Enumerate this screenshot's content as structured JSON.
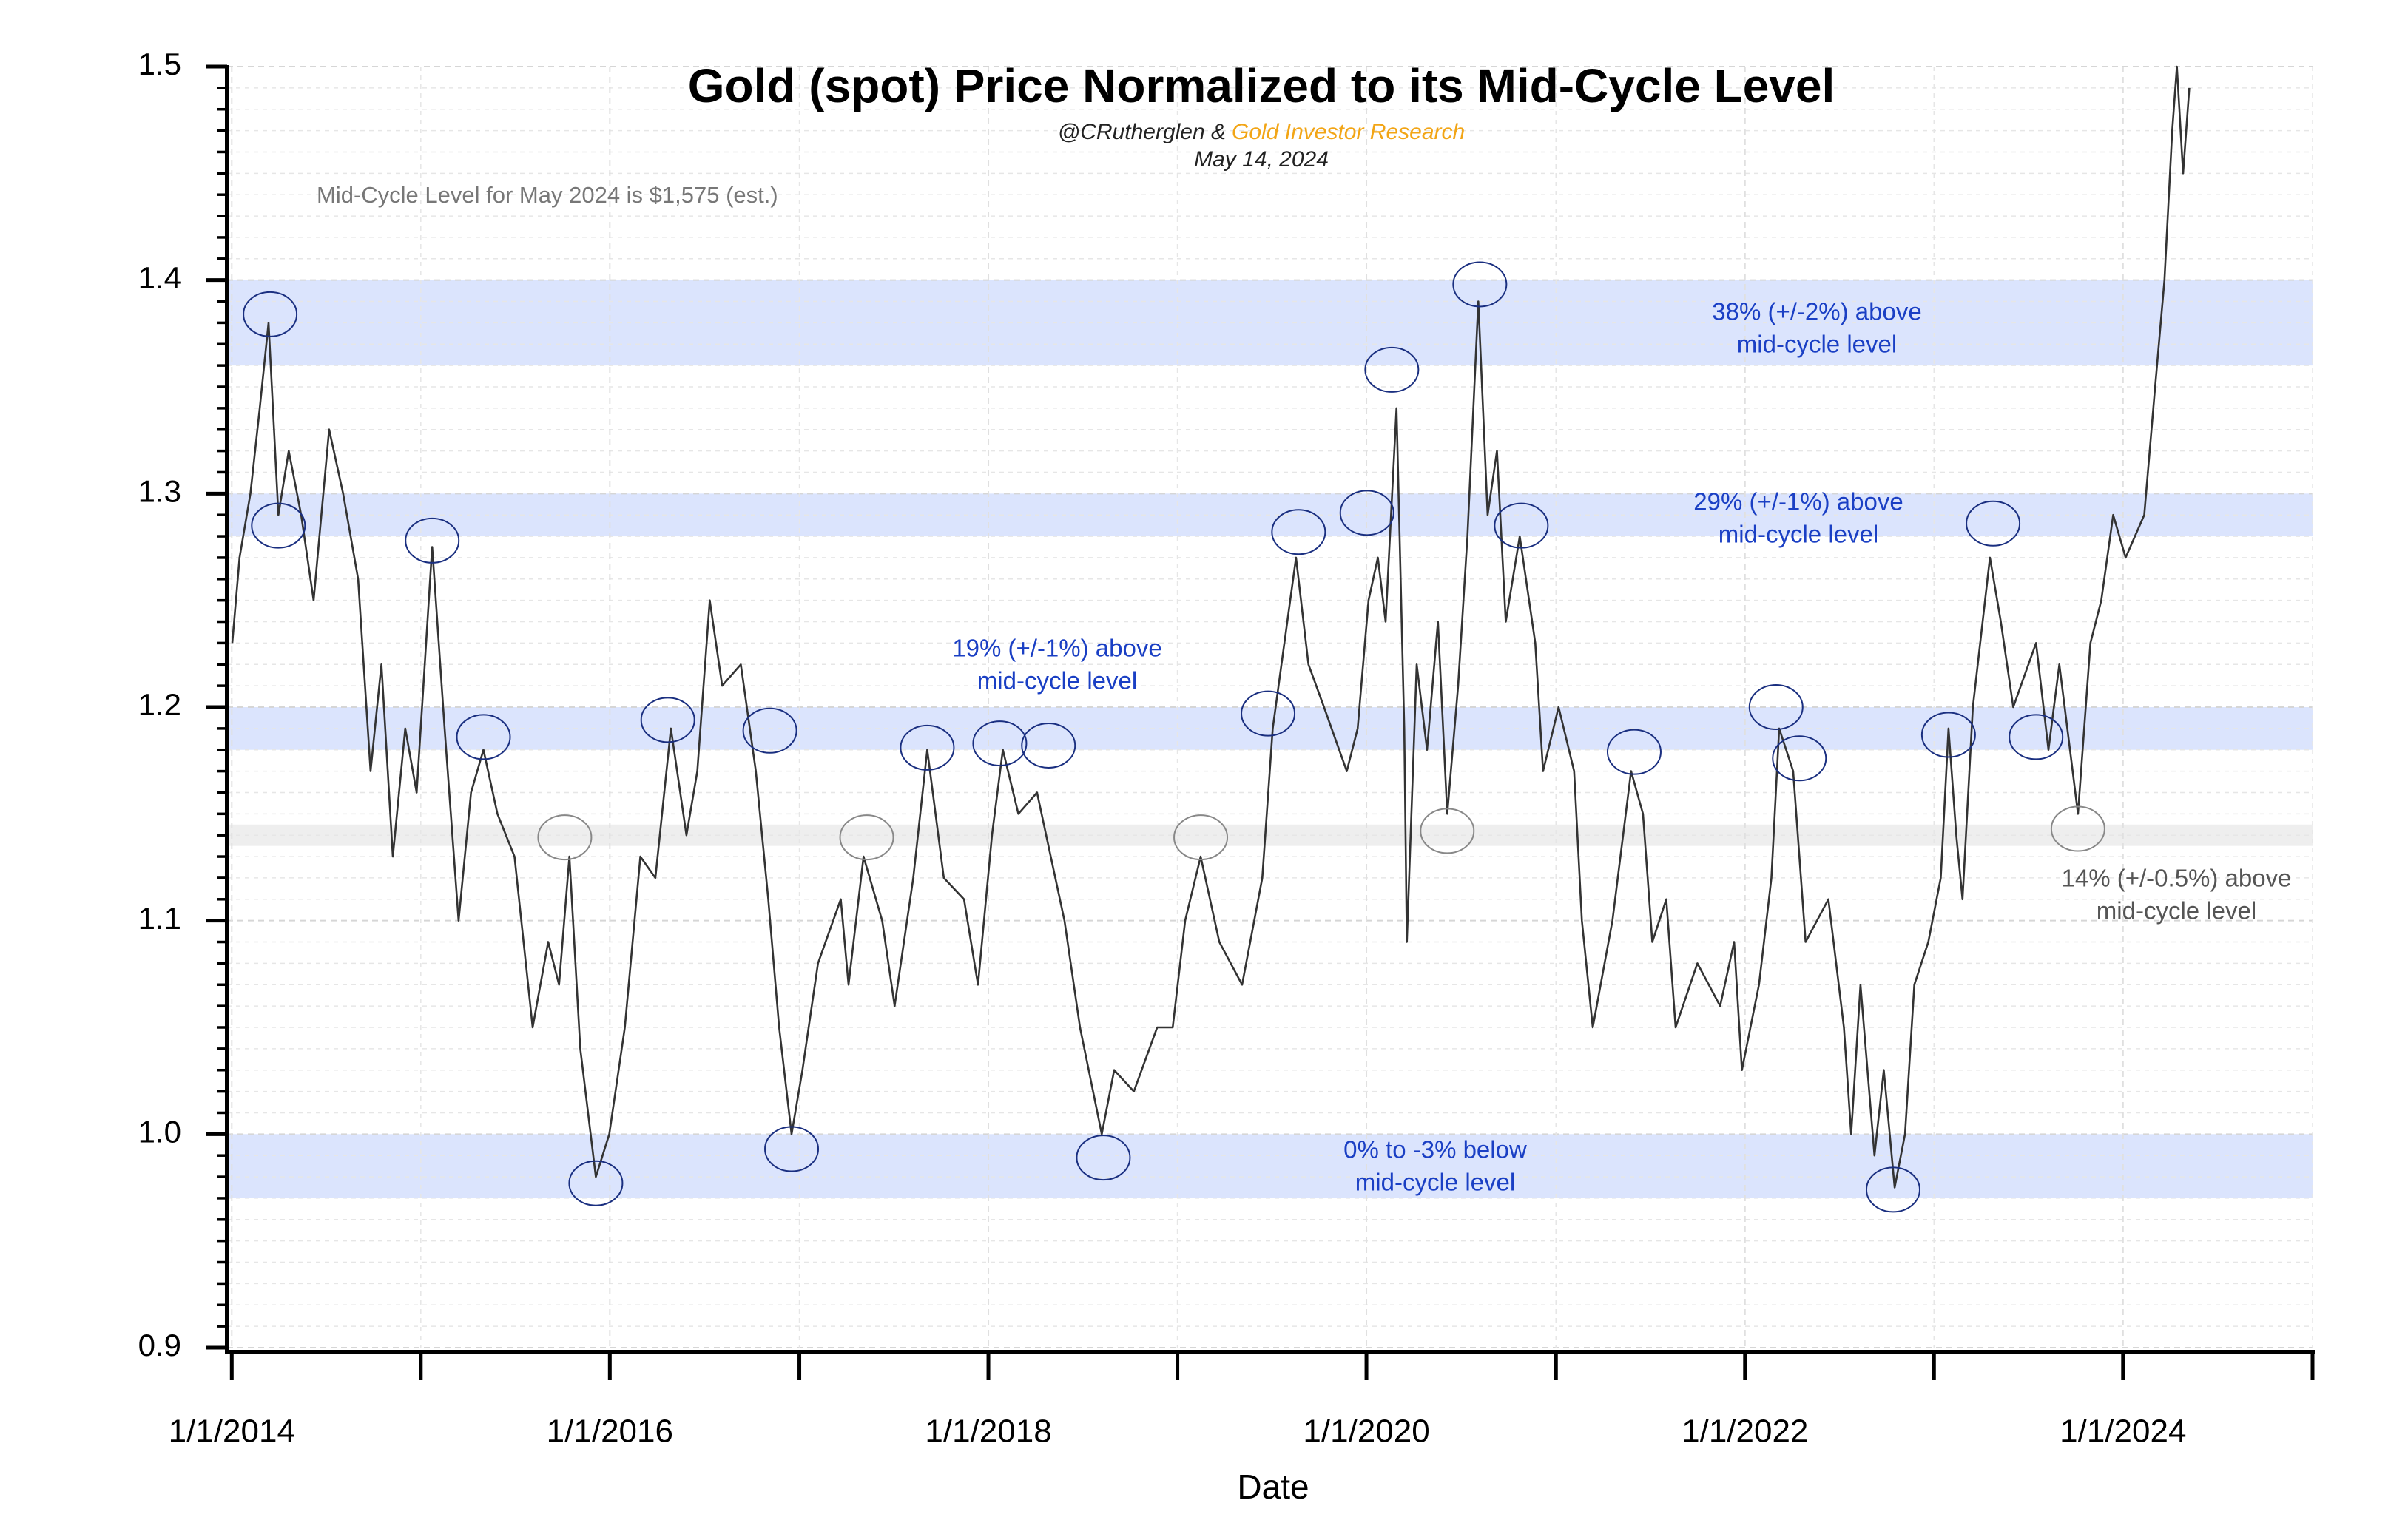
{
  "chart_data": {
    "type": "line",
    "title": "Gold (spot) Price Normalized to its Mid-Cycle Level",
    "subtitle_author": "@CRutherglen &",
    "subtitle_source": "Gold Investor Research",
    "subtitle_date": "May 14, 2024",
    "note": "Mid-Cycle Level for May 2024 is $1,575 (est.)",
    "xlabel": "Date",
    "xlim": [
      "2013-12-23",
      "2025-01-01"
    ],
    "xticks": [
      {
        "value": "2014-01-01",
        "label": "1/1/2014"
      },
      {
        "value": "2016-01-01",
        "label": "1/1/2016"
      },
      {
        "value": "2018-01-01",
        "label": "1/1/2018"
      },
      {
        "value": "2020-01-01",
        "label": "1/1/2020"
      },
      {
        "value": "2022-01-01",
        "label": "1/1/2022"
      },
      {
        "value": "2024-01-01",
        "label": "1/1/2024"
      }
    ],
    "xminor_ticks": [
      "2015-01-01",
      "2017-01-01",
      "2019-01-01",
      "2021-01-01",
      "2023-01-01",
      "2025-01-01"
    ],
    "ylim": [
      0.9,
      1.5
    ],
    "yticks": [
      0.9,
      {
        "value": 1,
        "label": "1.0"
      },
      1.1,
      1.2,
      1.3,
      1.4,
      1.5
    ],
    "yminor_ticks": [
      0.91,
      0.92,
      0.93,
      0.94,
      0.95,
      0.96,
      0.97,
      0.98,
      0.99,
      1.01,
      1.02,
      1.03,
      1.04,
      1.05,
      1.06,
      1.07,
      1.08,
      1.09,
      1.11,
      1.12,
      1.13,
      1.14,
      1.15,
      1.16,
      1.17,
      1.18,
      1.19,
      1.21,
      1.22,
      1.23,
      1.24,
      1.25,
      1.26,
      1.27,
      1.28,
      1.29,
      1.31,
      1.32,
      1.33,
      1.34,
      1.35,
      1.36,
      1.37,
      1.38,
      1.39,
      1.41,
      1.42,
      1.43,
      1.44,
      1.45,
      1.46,
      1.47,
      1.48,
      1.49
    ],
    "grid": true,
    "series": [
      {
        "name": "Gold (spot) normalized",
        "color": "#333333",
        "x": [
          "2014-01-02",
          "2014-01-16",
          "2014-02-06",
          "2014-02-24",
          "2014-03-13",
          "2014-04-01",
          "2014-04-21",
          "2014-05-15",
          "2014-06-08",
          "2014-07-08",
          "2014-08-04",
          "2014-09-02",
          "2014-09-26",
          "2014-10-17",
          "2014-11-08",
          "2014-12-02",
          "2014-12-24",
          "2015-01-23",
          "2015-02-16",
          "2015-03-15",
          "2015-04-08",
          "2015-05-02",
          "2015-05-29",
          "2015-07-01",
          "2015-08-05",
          "2015-09-04",
          "2015-09-25",
          "2015-10-15",
          "2015-11-05",
          "2015-12-05",
          "2015-12-31",
          "2016-01-30",
          "2016-02-29",
          "2016-03-29",
          "2016-04-28",
          "2016-05-28",
          "2016-06-18",
          "2016-07-12",
          "2016-08-05",
          "2016-09-10",
          "2016-10-09",
          "2016-11-02",
          "2016-11-23",
          "2016-12-17",
          "2017-01-07",
          "2017-02-06",
          "2017-03-22",
          "2017-04-06",
          "2017-05-05",
          "2017-06-10",
          "2017-07-04",
          "2017-08-09",
          "2017-09-05",
          "2017-10-07",
          "2017-11-15",
          "2017-12-12",
          "2018-01-08",
          "2018-01-29",
          "2018-02-28",
          "2018-04-05",
          "2018-05-28",
          "2018-06-27",
          "2018-08-08",
          "2018-09-01",
          "2018-10-09",
          "2018-11-23",
          "2018-12-23",
          "2019-01-16",
          "2019-02-15",
          "2019-03-23",
          "2019-05-06",
          "2019-06-14",
          "2019-07-04",
          "2019-08-18",
          "2019-09-11",
          "2019-10-11",
          "2019-11-24",
          "2019-12-15",
          "2020-01-05",
          "2020-01-23",
          "2020-02-07",
          "2020-02-28",
          "2020-03-14",
          "2020-03-19",
          "2020-04-07",
          "2020-04-27",
          "2020-05-18",
          "2020-06-05",
          "2020-06-26",
          "2020-07-14",
          "2020-08-04",
          "2020-08-22",
          "2020-09-09",
          "2020-09-26",
          "2020-10-23",
          "2020-11-22",
          "2020-12-07",
          "2021-01-06",
          "2021-02-05",
          "2021-02-20",
          "2021-03-13",
          "2021-04-20",
          "2021-05-26",
          "2021-06-18",
          "2021-07-06",
          "2021-08-02",
          "2021-08-20",
          "2021-10-01",
          "2021-11-14",
          "2021-12-11",
          "2021-12-26",
          "2022-01-28",
          "2022-02-21",
          "2022-03-08",
          "2022-04-04",
          "2022-04-28",
          "2022-06-11",
          "2022-07-11",
          "2022-07-25",
          "2022-08-12",
          "2022-09-08",
          "2022-09-26",
          "2022-10-17",
          "2022-11-06",
          "2022-11-24",
          "2022-12-21",
          "2023-01-14",
          "2023-01-29",
          "2023-02-13",
          "2023-02-25",
          "2023-03-17",
          "2023-04-19",
          "2023-05-10",
          "2023-06-03",
          "2023-07-17",
          "2023-08-10",
          "2023-08-31",
          "2023-10-06",
          "2023-10-30",
          "2023-11-20",
          "2023-12-13",
          "2024-01-06",
          "2024-02-11",
          "2024-03-03",
          "2024-03-21",
          "2024-04-05",
          "2024-04-14",
          "2024-04-26",
          "2024-05-08"
        ],
        "values": [
          1.23,
          1.27,
          1.3,
          1.34,
          1.38,
          1.29,
          1.32,
          1.29,
          1.25,
          1.33,
          1.3,
          1.26,
          1.17,
          1.22,
          1.13,
          1.19,
          1.16,
          1.275,
          1.19,
          1.1,
          1.16,
          1.18,
          1.15,
          1.13,
          1.05,
          1.09,
          1.07,
          1.13,
          1.04,
          0.98,
          1.0,
          1.05,
          1.13,
          1.12,
          1.19,
          1.14,
          1.17,
          1.25,
          1.21,
          1.22,
          1.17,
          1.11,
          1.05,
          1.0,
          1.03,
          1.08,
          1.11,
          1.07,
          1.13,
          1.1,
          1.06,
          1.12,
          1.18,
          1.12,
          1.11,
          1.07,
          1.14,
          1.18,
          1.15,
          1.16,
          1.1,
          1.05,
          1.0,
          1.03,
          1.02,
          1.05,
          1.05,
          1.1,
          1.13,
          1.09,
          1.07,
          1.12,
          1.19,
          1.27,
          1.22,
          1.2,
          1.17,
          1.19,
          1.25,
          1.27,
          1.24,
          1.34,
          1.19,
          1.09,
          1.22,
          1.18,
          1.24,
          1.15,
          1.21,
          1.28,
          1.39,
          1.29,
          1.32,
          1.24,
          1.28,
          1.23,
          1.17,
          1.2,
          1.17,
          1.1,
          1.05,
          1.1,
          1.17,
          1.15,
          1.09,
          1.11,
          1.05,
          1.08,
          1.06,
          1.09,
          1.03,
          1.07,
          1.12,
          1.19,
          1.17,
          1.09,
          1.11,
          1.05,
          1.0,
          1.07,
          0.99,
          1.03,
          0.975,
          1.0,
          1.07,
          1.09,
          1.12,
          1.19,
          1.14,
          1.11,
          1.2,
          1.27,
          1.24,
          1.2,
          1.23,
          1.18,
          1.22,
          1.15,
          1.23,
          1.25,
          1.29,
          1.27,
          1.29,
          1.35,
          1.4,
          1.47,
          1.5,
          1.45,
          1.49
        ]
      }
    ],
    "bands": [
      {
        "from": 1.36,
        "to": 1.4,
        "color": "#d5dffd",
        "label_color": "#1a3fc4",
        "label": [
          "38% (+/-2%) above",
          "mid-cycle level"
        ]
      },
      {
        "from": 1.28,
        "to": 1.3,
        "color": "#d5dffd",
        "label_color": "#1a3fc4",
        "label": [
          "29% (+/-1%) above",
          "mid-cycle level"
        ]
      },
      {
        "from": 1.18,
        "to": 1.2,
        "color": "#d5dffd",
        "label_color": "#1a3fc4",
        "label": [
          "19% (+/-1%) above",
          "mid-cycle level"
        ]
      },
      {
        "from": 1.135,
        "to": 1.145,
        "color": "#ebebeb",
        "label_color": "#555555",
        "label": [
          "14% (+/-0.5%) above",
          "mid-cycle level"
        ]
      },
      {
        "from": 0.97,
        "to": 1.0,
        "color": "#d5dffd",
        "label_color": "#1a3fc4",
        "label": [
          "0% to -3% below",
          "mid-cycle level"
        ]
      }
    ],
    "markers": [
      {
        "x": "2014-03-16",
        "y": 1.384,
        "color": "#1a2f80"
      },
      {
        "x": "2014-04-01",
        "y": 1.285,
        "color": "#1a2f80"
      },
      {
        "x": "2015-01-23",
        "y": 1.278,
        "color": "#1a2f80"
      },
      {
        "x": "2015-05-02",
        "y": 1.186,
        "color": "#1a2f80"
      },
      {
        "x": "2015-10-06",
        "y": 1.139,
        "color": "#888888"
      },
      {
        "x": "2015-12-05",
        "y": 0.977,
        "color": "#1a2f80"
      },
      {
        "x": "2016-04-22",
        "y": 1.194,
        "color": "#1a2f80"
      },
      {
        "x": "2016-11-05",
        "y": 1.189,
        "color": "#1a2f80"
      },
      {
        "x": "2016-12-17",
        "y": 0.993,
        "color": "#1a2f80"
      },
      {
        "x": "2017-05-11",
        "y": 1.139,
        "color": "#888888"
      },
      {
        "x": "2017-09-05",
        "y": 1.181,
        "color": "#1a2f80"
      },
      {
        "x": "2018-01-23",
        "y": 1.183,
        "color": "#1a2f80"
      },
      {
        "x": "2018-04-27",
        "y": 1.182,
        "color": "#1a2f80"
      },
      {
        "x": "2018-08-11",
        "y": 0.989,
        "color": "#1a2f80"
      },
      {
        "x": "2019-02-15",
        "y": 1.139,
        "color": "#888888"
      },
      {
        "x": "2019-06-25",
        "y": 1.197,
        "color": "#1a2f80"
      },
      {
        "x": "2019-08-23",
        "y": 1.282,
        "color": "#1a2f80"
      },
      {
        "x": "2020-01-02",
        "y": 1.291,
        "color": "#1a2f80"
      },
      {
        "x": "2020-02-19",
        "y": 1.358,
        "color": "#1a2f80"
      },
      {
        "x": "2020-06-05",
        "y": 1.142,
        "color": "#888888"
      },
      {
        "x": "2020-08-07",
        "y": 1.398,
        "color": "#1a2f80"
      },
      {
        "x": "2020-10-26",
        "y": 1.285,
        "color": "#1a2f80"
      },
      {
        "x": "2021-06-01",
        "y": 1.179,
        "color": "#1a2f80"
      },
      {
        "x": "2022-03-02",
        "y": 1.2,
        "color": "#1a2f80"
      },
      {
        "x": "2022-04-16",
        "y": 1.176,
        "color": "#1a2f80"
      },
      {
        "x": "2022-10-14",
        "y": 0.974,
        "color": "#1a2f80"
      },
      {
        "x": "2023-01-29",
        "y": 1.187,
        "color": "#1a2f80"
      },
      {
        "x": "2023-04-25",
        "y": 1.286,
        "color": "#1a2f80"
      },
      {
        "x": "2023-07-17",
        "y": 1.186,
        "color": "#1a2f80"
      },
      {
        "x": "2023-10-06",
        "y": 1.143,
        "color": "#888888"
      }
    ]
  }
}
